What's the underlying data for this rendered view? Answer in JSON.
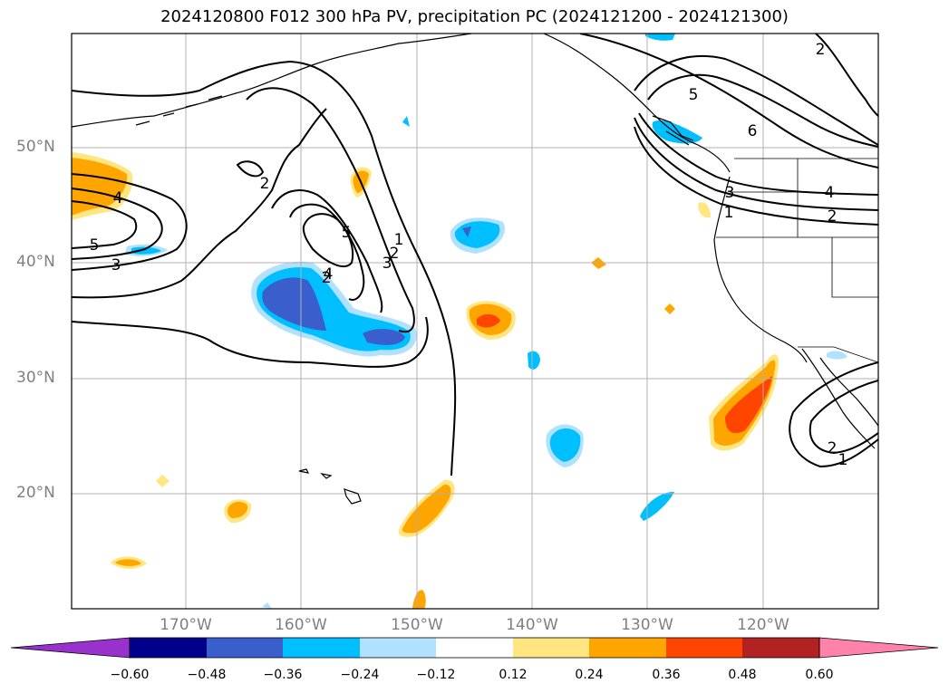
{
  "title": "2024120800 F012 300 hPa PV, precipitation PC (2024121200 - 2024121300)",
  "lat_labels": [
    "50°N",
    "40°N",
    "30°N",
    "20°N"
  ],
  "lon_labels": [
    "170°W",
    "160°W",
    "150°W",
    "140°W",
    "130°W",
    "120°W"
  ],
  "contour_labels": [
    "2",
    "4",
    "5",
    "3",
    "2",
    "5",
    "4",
    "1",
    "2",
    "3",
    "5",
    "6",
    "2",
    "4",
    "3",
    "1",
    "2",
    "2",
    "1"
  ],
  "colorbar": {
    "ticks": [
      "−0.60",
      "−0.48",
      "−0.36",
      "−0.24",
      "−0.12",
      "0.12",
      "0.24",
      "0.36",
      "0.48",
      "0.60"
    ],
    "colors": [
      "#9932cc",
      "#00008b",
      "#3a5fcd",
      "#00bfff",
      "#b0e2ff",
      "#ffffff",
      "#ffe680",
      "#ffa500",
      "#ff4500",
      "#b22222",
      "#ff82ab"
    ]
  },
  "colors": {
    "strong_pos": "#ff4500",
    "pos": "#ffa500",
    "weak_pos": "#ffe680",
    "weak_neg": "#b0e2ff",
    "neg": "#00bfff",
    "strong_neg": "#3a5fcd",
    "grid": "#b0b0b0",
    "contour": "#000000"
  }
}
